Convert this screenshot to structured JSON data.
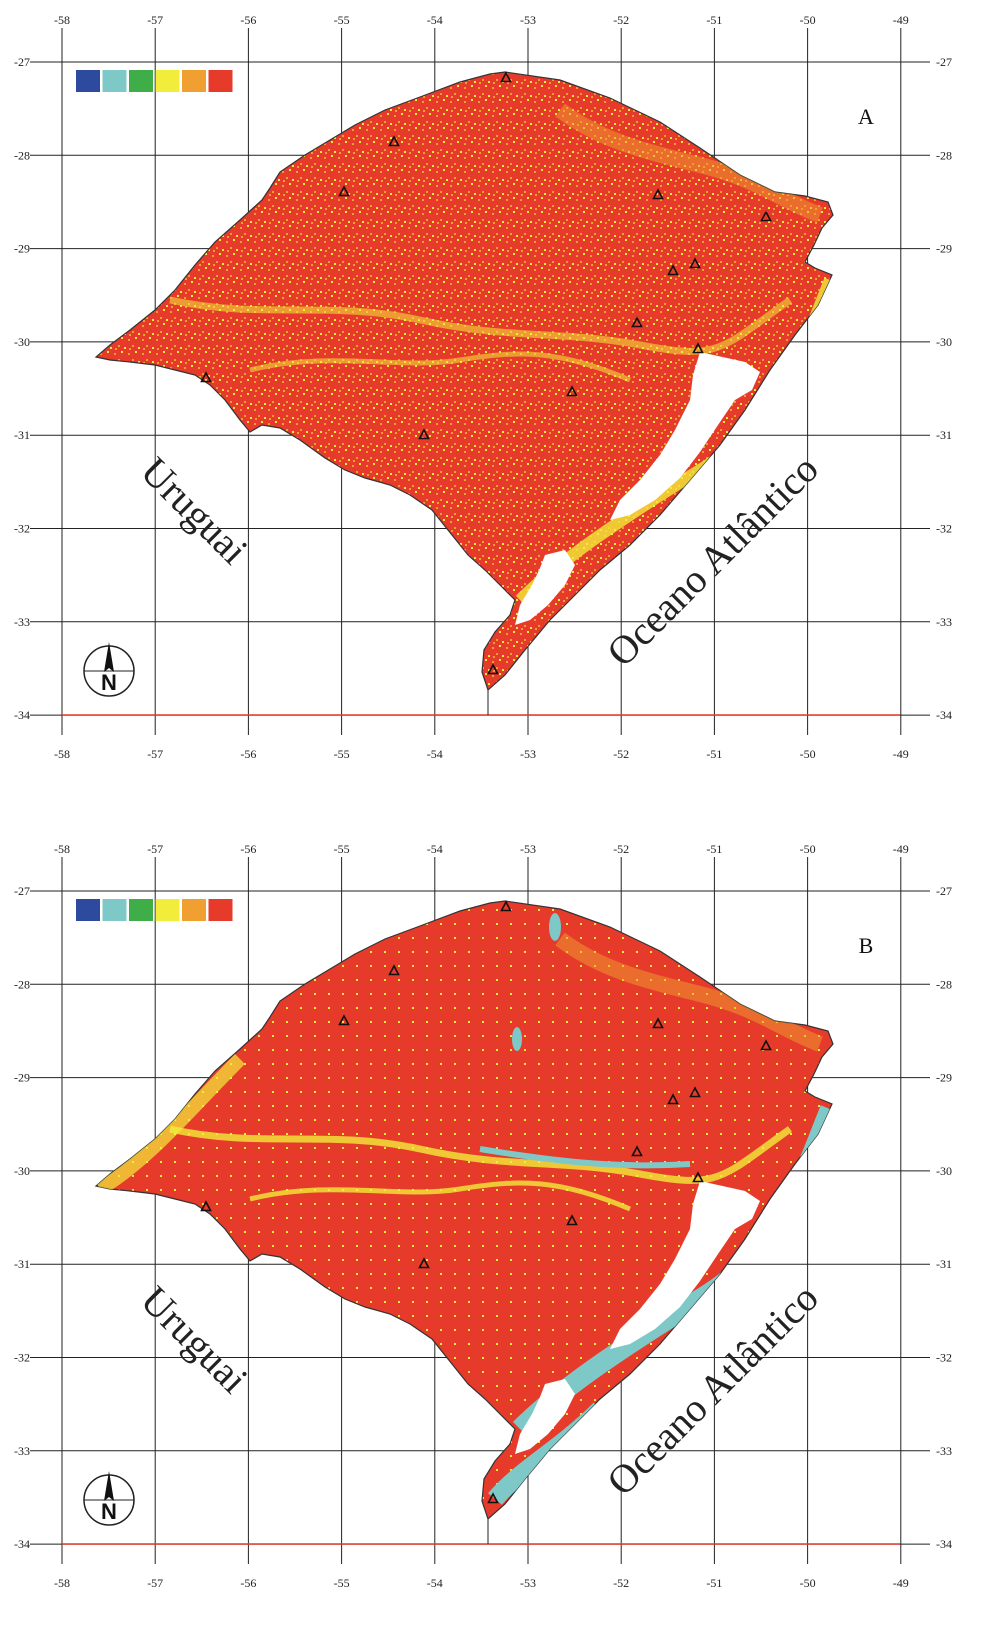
{
  "lon_ticks": [
    "-58",
    "-57",
    "-56",
    "-55",
    "-54",
    "-53",
    "-52",
    "-51",
    "-50",
    "-49"
  ],
  "lat_ticks": [
    "-27",
    "-28",
    "-29",
    "-30",
    "-31",
    "-32",
    "-33",
    "-34"
  ],
  "legend_colors": [
    "#2e4a9e",
    "#7ec8c8",
    "#3fae49",
    "#f2ec3a",
    "#f0a030",
    "#e63a2a"
  ],
  "colors": {
    "land_high": "#e63a2a",
    "land_mid": "#f0a030",
    "land_low": "#f2ec3a",
    "water": "#7ec8c8",
    "lagoon": "#ffffff"
  },
  "labels": {
    "country": "Uruguai",
    "ocean": "Oceano Atlântico",
    "north": "N"
  },
  "panels": [
    {
      "id": "panel-a",
      "letter": "A"
    },
    {
      "id": "panel-b",
      "letter": "B"
    }
  ]
}
